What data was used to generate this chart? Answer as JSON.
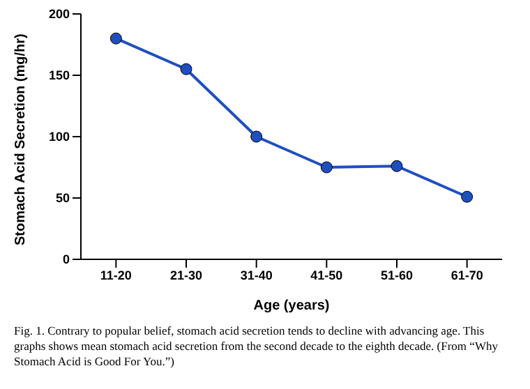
{
  "chart_data": {
    "type": "line",
    "xlabel": "Age (years)",
    "ylabel": "Stomach Acid Secretion (mg/hr)",
    "categories": [
      "11-20",
      "21-30",
      "31-40",
      "41-50",
      "51-60",
      "61-70"
    ],
    "series": [
      {
        "color": "#1f4fbf",
        "values": [
          180,
          155,
          100,
          75,
          76,
          51
        ]
      }
    ],
    "ylim": [
      0,
      200
    ],
    "yticks": [
      0,
      50,
      100,
      150,
      200
    ],
    "grid": false,
    "legend": false,
    "marker": "circle",
    "line_style": "solid",
    "annotations": [
      "Fig. 1. Contrary to popular belief, stomach acid secretion tends to decline with advancing age. This graphs shows mean stomach acid secretion from the second decade to the eighth decade. (From “Why Stomach Acid is Good For You.”)"
    ]
  }
}
